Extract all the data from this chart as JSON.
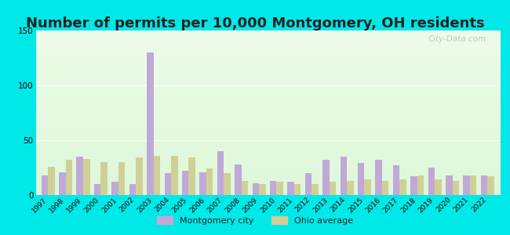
{
  "title": "Number of permits per 10,000 Montgomery, OH residents",
  "years": [
    1997,
    1998,
    1999,
    2000,
    2001,
    2002,
    2003,
    2004,
    2005,
    2006,
    2007,
    2008,
    2009,
    2010,
    2011,
    2012,
    2013,
    2014,
    2015,
    2016,
    2017,
    2018,
    2019,
    2020,
    2021,
    2022
  ],
  "montgomery": [
    18,
    21,
    35,
    10,
    12,
    10,
    130,
    20,
    22,
    21,
    40,
    28,
    11,
    13,
    12,
    20,
    32,
    35,
    29,
    32,
    27,
    17,
    25,
    18,
    18,
    18
  ],
  "ohio_avg": [
    26,
    32,
    33,
    30,
    30,
    34,
    36,
    36,
    34,
    24,
    20,
    13,
    10,
    12,
    10,
    10,
    12,
    13,
    14,
    13,
    14,
    18,
    14,
    13,
    18,
    17
  ],
  "montgomery_color": "#c0a8d8",
  "ohio_color": "#d0d096",
  "ylim": [
    0,
    150
  ],
  "yticks": [
    0,
    50,
    100,
    150
  ],
  "outer_bg": "#00e8e8",
  "title_fontsize": 13,
  "watermark": "City-Data.com",
  "legend_label1": "Montgomery city",
  "legend_label2": "Ohio average"
}
